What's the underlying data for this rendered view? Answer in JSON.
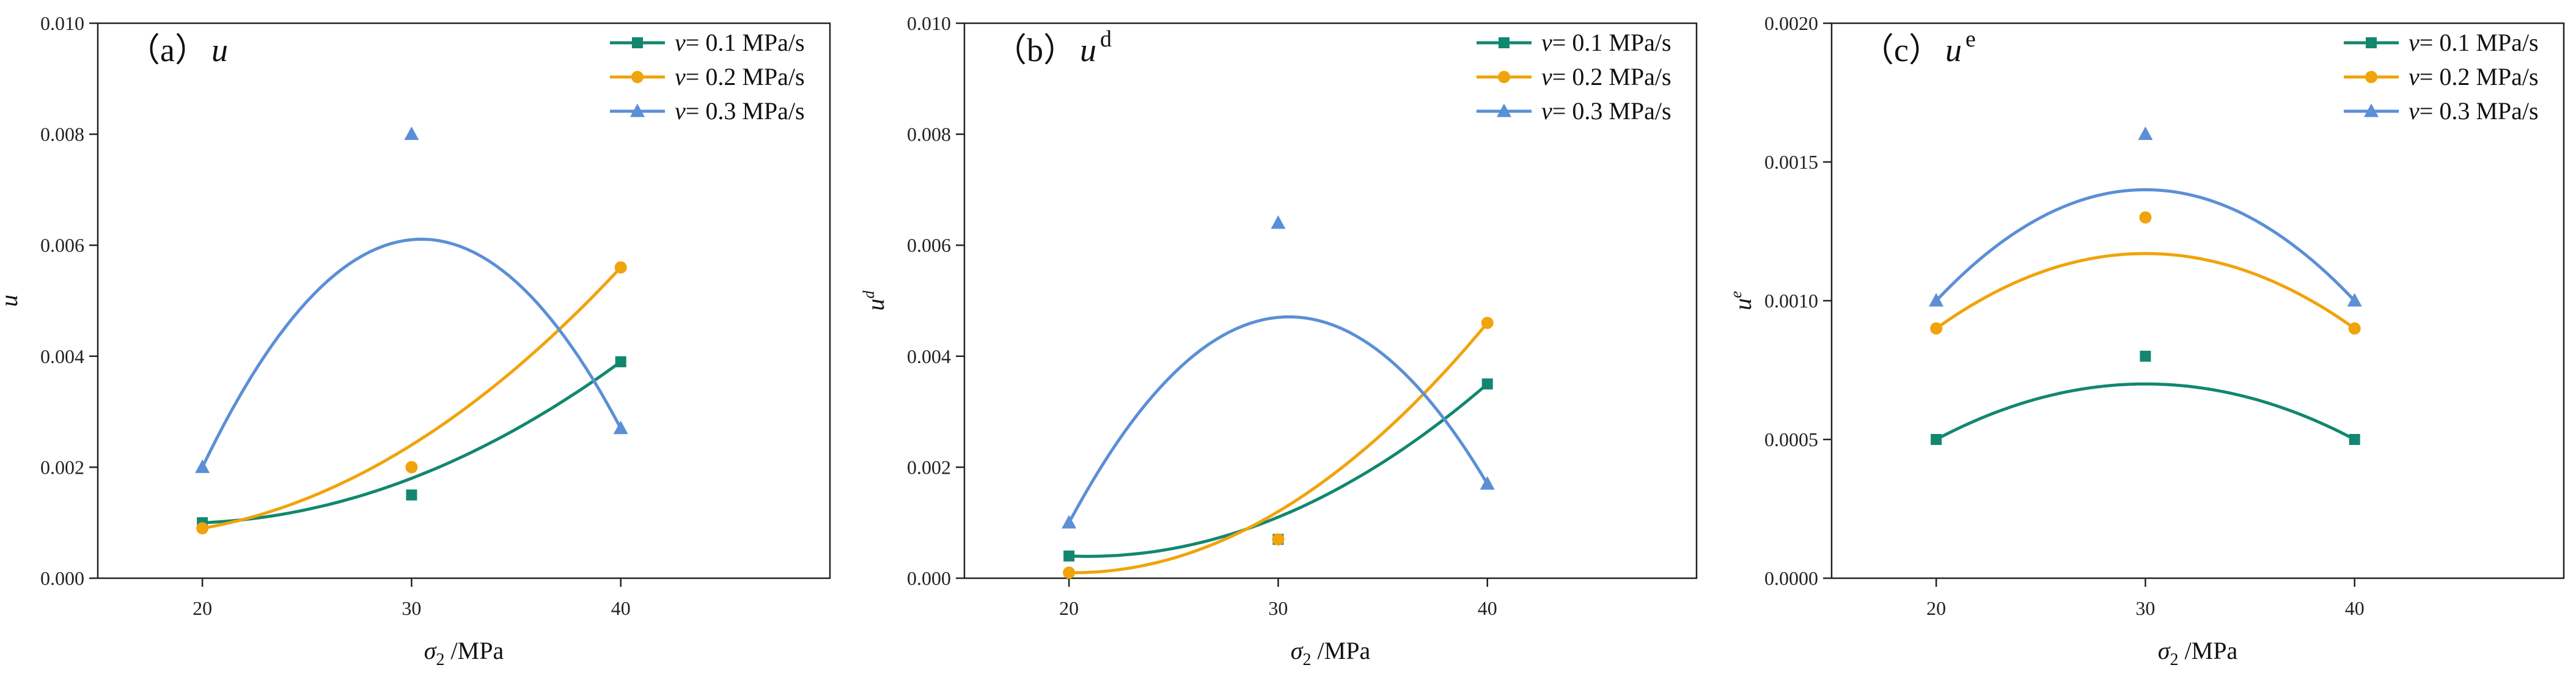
{
  "chart_data": [
    {
      "type": "scatter",
      "panel_label": "（a）",
      "title_symbol": "u",
      "title_superscript": "",
      "ylabel_symbol": "u",
      "ylabel_superscript": "",
      "xlabel_symbol": "σ",
      "xlabel_subscript": "2",
      "xlabel_unit": " /MPa",
      "xlim": [
        15,
        50
      ],
      "ylim": [
        0,
        0.01
      ],
      "xticks": [
        "20",
        "30",
        "40"
      ],
      "yticks": [
        "0.000",
        "0.002",
        "0.004",
        "0.006",
        "0.008",
        "0.010"
      ],
      "legend_position": "top-right",
      "x": [
        20,
        30,
        40
      ],
      "series": [
        {
          "name": "v= 0.1 MPa/s",
          "values": [
            0.001,
            0.0015,
            0.0039
          ],
          "fit": [
            0.001,
            0.0018,
            0.0039
          ]
        },
        {
          "name": "v= 0.2 MPa/s",
          "values": [
            0.0009,
            0.002,
            0.0056
          ],
          "fit": [
            0.0009,
            0.0024,
            0.0056
          ]
        },
        {
          "name": "v= 0.3 MPa/s",
          "values": [
            0.002,
            0.008,
            0.0027
          ],
          "fit": [
            0.002,
            0.0061,
            0.0027
          ]
        }
      ]
    },
    {
      "type": "scatter",
      "panel_label": "（b）",
      "title_symbol": "u",
      "title_superscript": "d",
      "ylabel_symbol": "u",
      "ylabel_superscript": "d",
      "xlabel_symbol": "σ",
      "xlabel_subscript": "2",
      "xlabel_unit": " /MPa",
      "xlim": [
        15,
        50
      ],
      "ylim": [
        0,
        0.01
      ],
      "xticks": [
        "20",
        "30",
        "40"
      ],
      "yticks": [
        "0.000",
        "0.002",
        "0.004",
        "0.006",
        "0.008",
        "0.010"
      ],
      "legend_position": "top-right",
      "x": [
        20,
        30,
        40
      ],
      "series": [
        {
          "name": "v= 0.1 MPa/s",
          "values": [
            0.0004,
            0.0007,
            0.0035
          ],
          "fit": [
            0.0004,
            0.0011,
            0.0035
          ]
        },
        {
          "name": "v= 0.2 MPa/s",
          "values": [
            0.0001,
            0.0007,
            0.0046
          ],
          "fit": [
            0.0001,
            0.0012,
            0.0046
          ]
        },
        {
          "name": "v= 0.3 MPa/s",
          "values": [
            0.001,
            0.0064,
            0.0017
          ],
          "fit": [
            0.001,
            0.0047,
            0.0017
          ]
        }
      ]
    },
    {
      "type": "scatter",
      "panel_label": "（c）",
      "title_symbol": "u",
      "title_superscript": "e",
      "ylabel_symbol": "u",
      "ylabel_superscript": "e",
      "xlabel_symbol": "σ",
      "xlabel_subscript": "2",
      "xlabel_unit": " /MPa",
      "xlim": [
        15,
        50
      ],
      "ylim": [
        0,
        0.002
      ],
      "xticks": [
        "20",
        "30",
        "40"
      ],
      "yticks": [
        "0.0000",
        "0.0005",
        "0.0010",
        "0.0015",
        "0.0020"
      ],
      "legend_position": "top-right",
      "x": [
        20,
        30,
        40
      ],
      "series": [
        {
          "name": "v= 0.1 MPa/s",
          "values": [
            0.0005,
            0.0008,
            0.0005
          ],
          "fit": [
            0.0005,
            0.0007,
            0.0005
          ]
        },
        {
          "name": "v= 0.2 MPa/s",
          "values": [
            0.0009,
            0.0013,
            0.0009
          ],
          "fit": [
            0.0009,
            0.00117,
            0.0009
          ]
        },
        {
          "name": "v= 0.3 MPa/s",
          "values": [
            0.001,
            0.0016,
            0.001
          ],
          "fit": [
            0.001,
            0.0014,
            0.001
          ]
        }
      ]
    }
  ],
  "colors": {
    "series": [
      "#12876f",
      "#f0a30a",
      "#5b8fd6"
    ],
    "axis": "#222222"
  },
  "markers": [
    "square",
    "circle",
    "triangle"
  ]
}
